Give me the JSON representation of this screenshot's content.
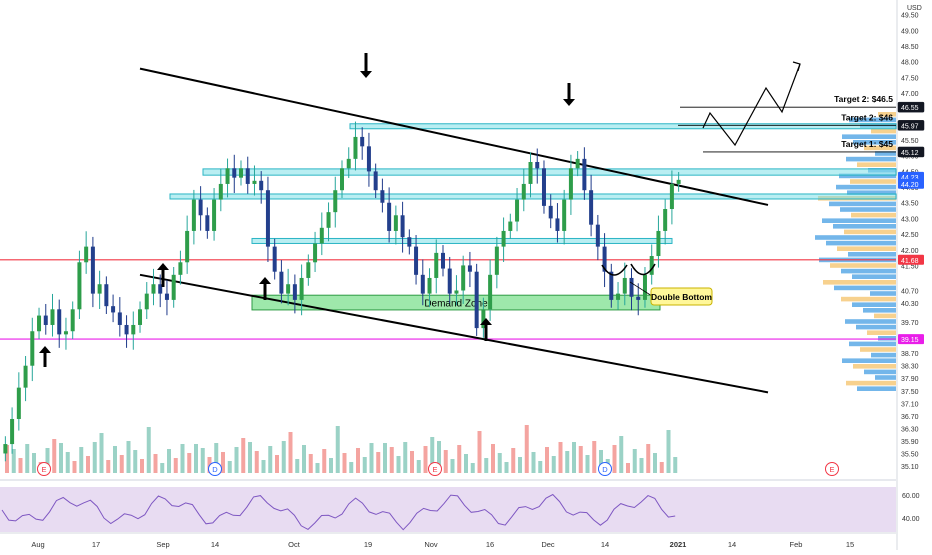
{
  "chart_data": {
    "type": "candlestick",
    "currency": "USD",
    "x_ticks": [
      "Aug",
      "17",
      "Sep",
      "14",
      "Oct",
      "19",
      "Nov",
      "16",
      "Dec",
      "14",
      "2021",
      "14",
      "Feb",
      "15"
    ],
    "y_ticks": [
      "35.10",
      "35.50",
      "35.90",
      "36.30",
      "36.70",
      "37.10",
      "37.50",
      "37.90",
      "38.30",
      "38.70",
      "39.10",
      "39.70",
      "40.30",
      "40.70",
      "41.50",
      "42.00",
      "42.50",
      "43.00",
      "43.50",
      "44.00",
      "44.50",
      "45.00",
      "45.50",
      "46.00",
      "46.55",
      "47.00",
      "47.50",
      "48.00",
      "48.50",
      "49.00",
      "49.50"
    ],
    "y_range": [
      35.1,
      49.65
    ],
    "price_badges": [
      {
        "value": 46.55,
        "label": "46.55",
        "style": "dark"
      },
      {
        "value": 45.97,
        "label": "45.97",
        "style": "dark"
      },
      {
        "value": 45.12,
        "label": "45.12",
        "style": "dark"
      },
      {
        "value": 44.23,
        "label": "44.23",
        "style": "blue"
      },
      {
        "value": 44.2,
        "label": "44.20",
        "style": "blue"
      },
      {
        "value": 41.68,
        "label": "41.68",
        "style": "red"
      },
      {
        "value": 39.15,
        "label": "39.15",
        "style": "magenta"
      }
    ],
    "horizontal_lines": [
      {
        "value": 41.68,
        "color": "#f23645"
      },
      {
        "value": 39.15,
        "color": "#e91ee9"
      },
      {
        "value": 45.12,
        "color": "#000000"
      }
    ],
    "resistance_zones": [
      {
        "from": 45.92,
        "to": 46.02
      },
      {
        "from": 44.38,
        "to": 44.58
      },
      {
        "from": 43.62,
        "to": 43.78
      },
      {
        "from": 42.26,
        "to": 42.36
      }
    ],
    "demand_zone": {
      "from": 40.08,
      "to": 40.55,
      "label": "Demand Zone"
    },
    "targets": [
      {
        "label": "Target 1: $45",
        "value": 45.12
      },
      {
        "label": "Target 2: $46",
        "value": 45.97
      },
      {
        "label": "Target 2: $46.5",
        "value": 46.55
      }
    ],
    "annotation": "Double Bottom",
    "event_markers": [
      "E",
      "D",
      "E",
      "D",
      "E"
    ],
    "rsi": {
      "ticks": [
        "60.00",
        "40.00"
      ],
      "range": [
        40,
        60
      ]
    },
    "approx_closes": [
      35.8,
      36.6,
      37.6,
      38.3,
      39.4,
      39.9,
      39.6,
      40.1,
      39.3,
      39.4,
      40.1,
      41.6,
      42.1,
      40.6,
      40.9,
      40.2,
      40.0,
      39.6,
      39.3,
      39.6,
      40.1,
      40.6,
      40.9,
      40.6,
      40.4,
      41.2,
      41.6,
      42.6,
      43.6,
      43.1,
      42.6,
      43.6,
      44.1,
      44.6,
      44.3,
      44.6,
      44.1,
      44.2,
      43.9,
      42.1,
      41.3,
      40.6,
      40.9,
      40.4,
      41.1,
      41.6,
      42.2,
      42.7,
      43.2,
      43.9,
      44.6,
      44.9,
      45.6,
      45.3,
      44.5,
      43.9,
      43.5,
      42.6,
      43.1,
      42.4,
      42.1,
      41.2,
      40.6,
      41.1,
      41.9,
      41.4,
      40.6,
      40.7,
      41.5,
      41.3,
      39.5,
      40.1,
      41.2,
      42.1,
      42.6,
      42.9,
      43.6,
      44.1,
      44.8,
      44.6,
      43.4,
      43.0,
      42.6,
      43.6,
      44.6,
      44.9,
      43.9,
      42.8,
      42.1,
      41.3,
      40.4,
      40.6,
      41.1,
      40.5,
      40.4,
      41.2,
      41.8,
      42.6,
      43.3,
      44.1,
      44.23
    ]
  },
  "legend": {
    "currency": "USD"
  }
}
